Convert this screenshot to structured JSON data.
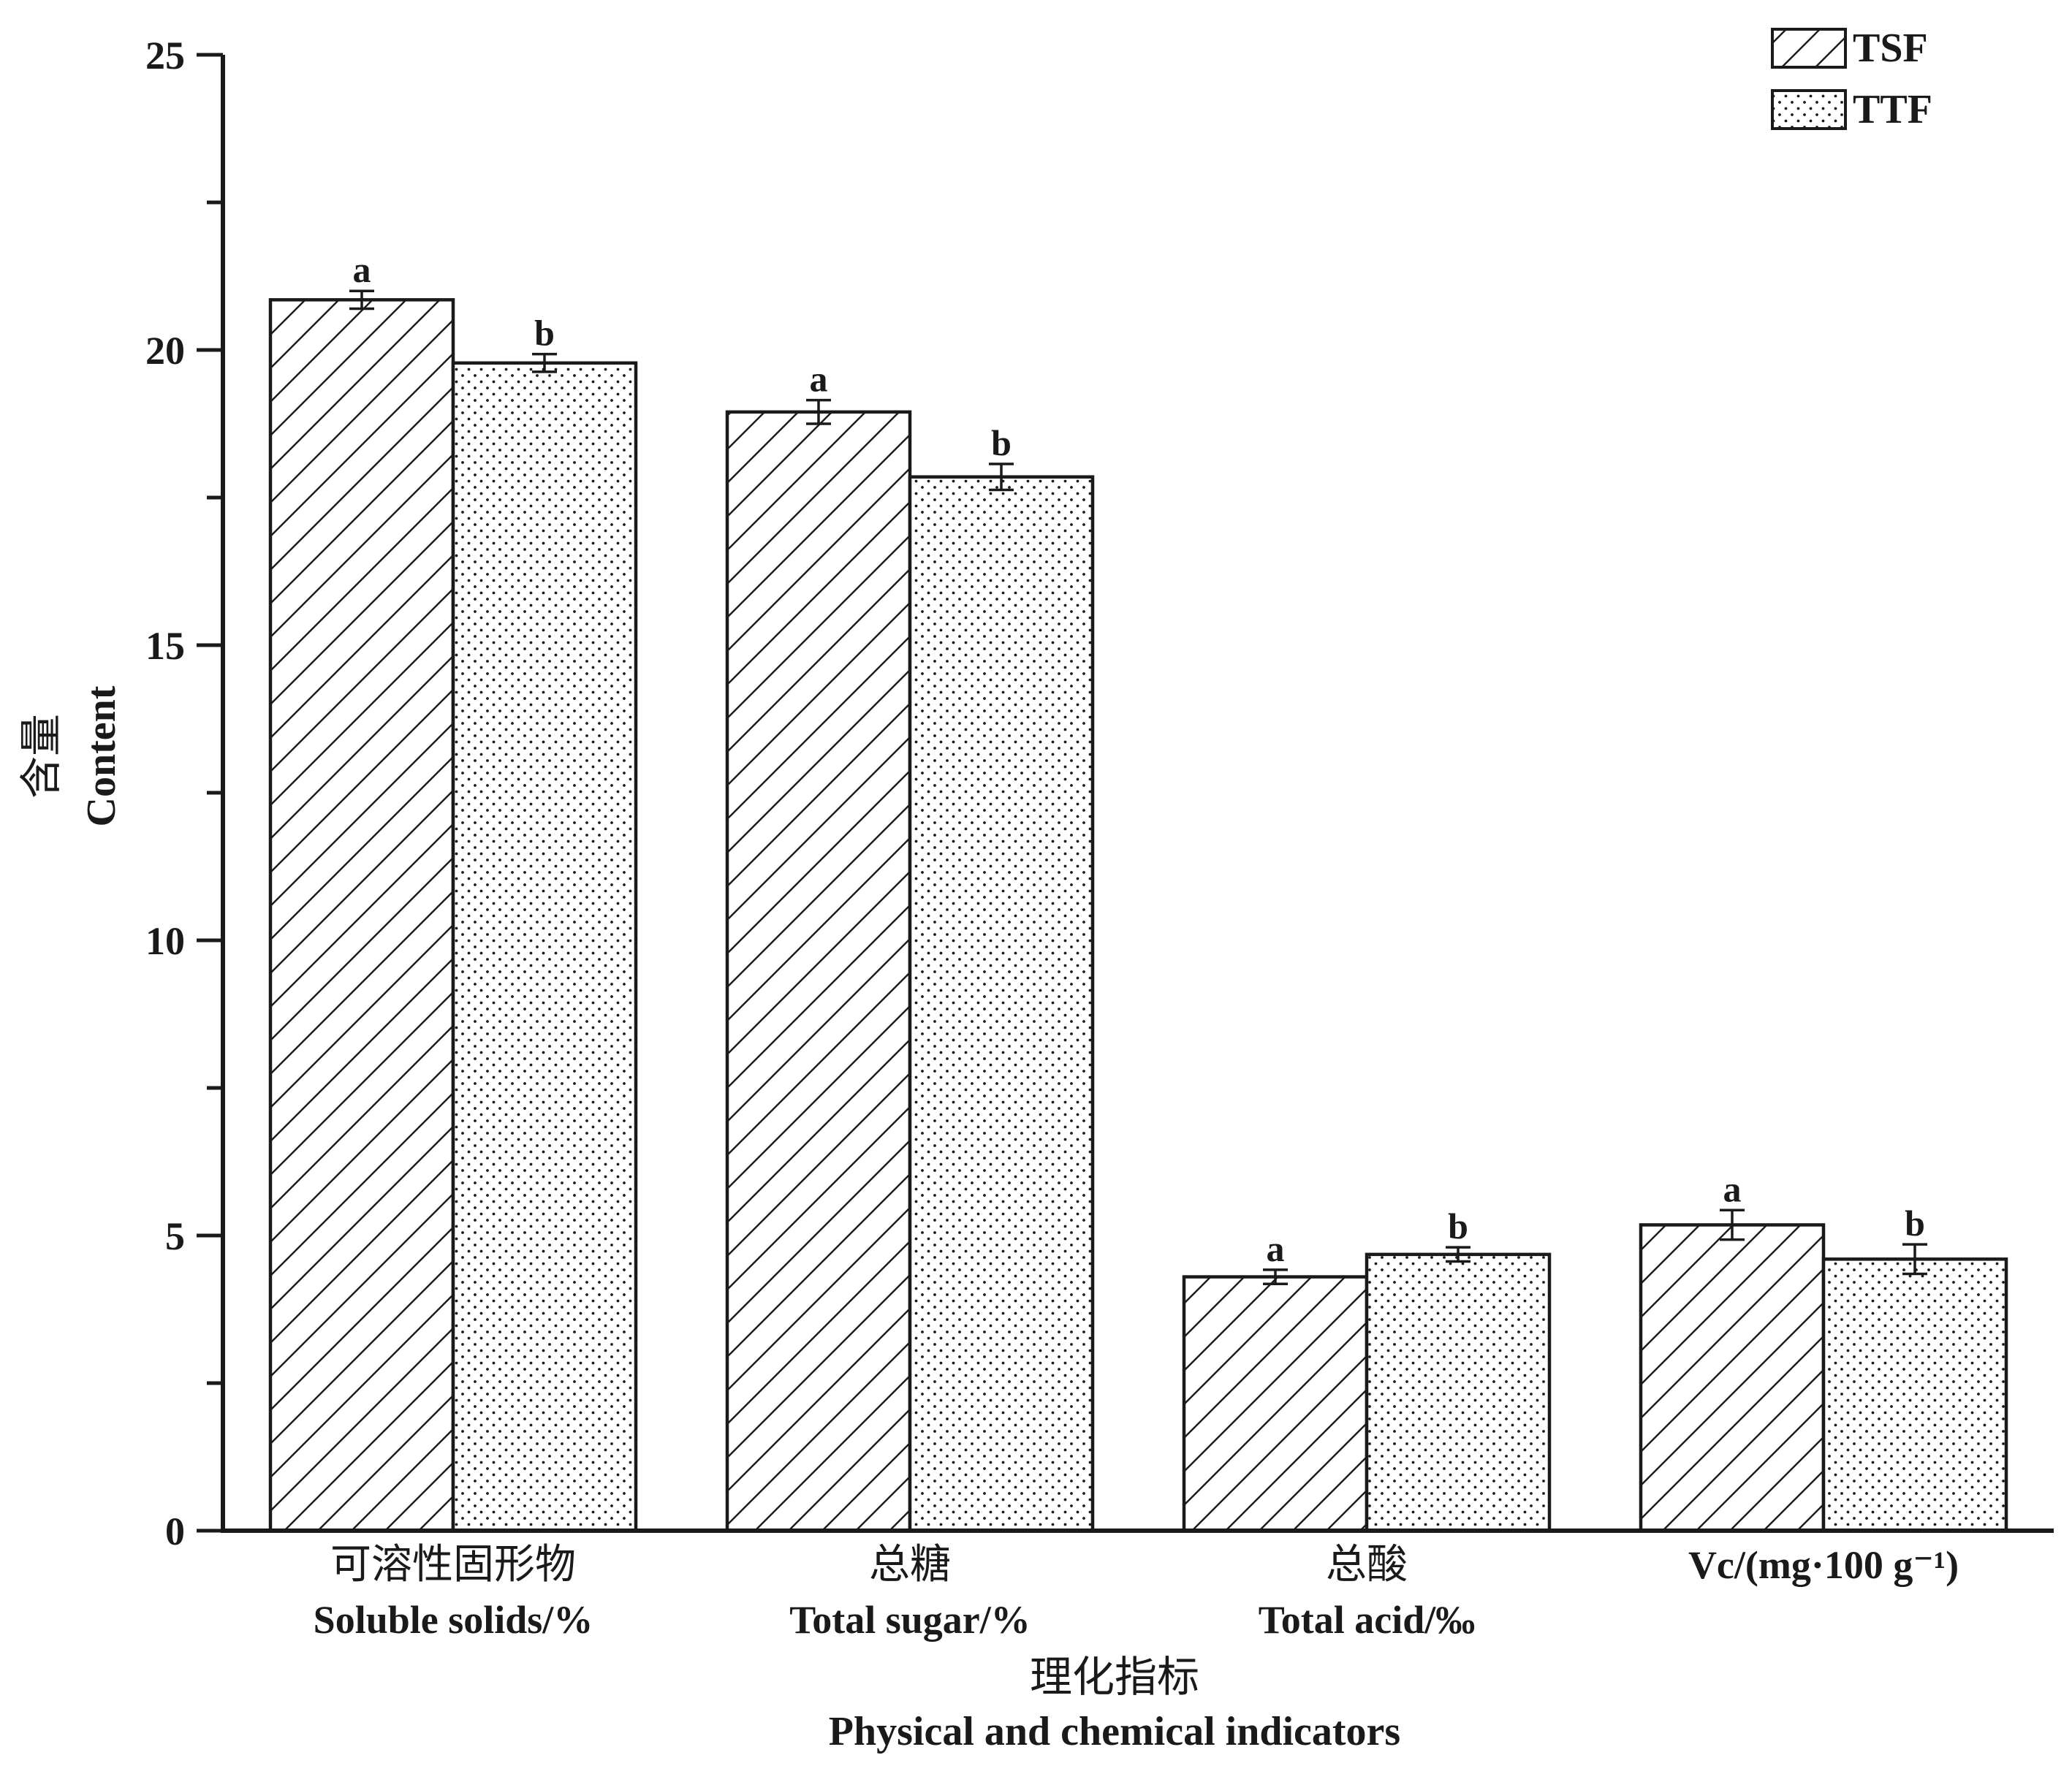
{
  "chart_data": {
    "type": "bar",
    "ylim": [
      0,
      25
    ],
    "yticks": [
      "0",
      "5",
      "10",
      "15",
      "20",
      "25"
    ],
    "ylabel": {
      "cn": "含量",
      "en": "Content"
    },
    "xlabel": {
      "cn": "理化指标",
      "en": "Physical and chemical indicators"
    },
    "categories": [
      {
        "cn": "可溶性固形物",
        "en": "Soluble solids/%"
      },
      {
        "cn": "总糖",
        "en": "Total sugar/%"
      },
      {
        "cn": "总酸",
        "en": "Total acid/‰"
      },
      {
        "cn": "",
        "en": "Vc/(mg·100 g⁻¹)"
      }
    ],
    "series": [
      {
        "name": "TSF",
        "pattern": "hatch",
        "values": [
          20.85,
          18.95,
          4.3,
          5.18
        ],
        "errors": [
          0.15,
          0.2,
          0.12,
          0.25
        ],
        "labels": [
          "a",
          "a",
          "a",
          "a"
        ]
      },
      {
        "name": "TTF",
        "pattern": "dots",
        "values": [
          19.78,
          17.85,
          4.68,
          4.6
        ],
        "errors": [
          0.15,
          0.22,
          0.12,
          0.25
        ],
        "labels": [
          "b",
          "b",
          "b",
          "b"
        ]
      }
    ],
    "legend_position": "top-right",
    "grid": false
  },
  "colors": {
    "ink": "#1a1a1a",
    "background": "#ffffff"
  }
}
